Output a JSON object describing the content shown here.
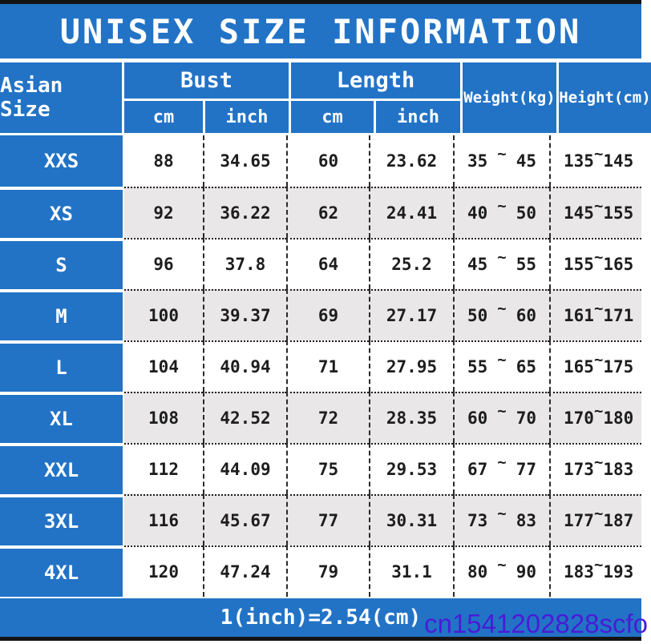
{
  "title": "UNISEX SIZE INFORMATION",
  "table": {
    "corner_header": "Asian Size",
    "bust_header": "Bust",
    "length_header": "Length",
    "weight_header": "Weight(kg)",
    "height_header": "Height(cm)",
    "cm_label": "cm",
    "inch_label": "inch",
    "tilde": "~",
    "rows": [
      {
        "size": "XXS",
        "bust_cm": "88",
        "bust_inch": "34.65",
        "length_cm": "60",
        "length_inch": "23.62",
        "weight_min": "35",
        "weight_max": "45",
        "height_min": "135",
        "height_max": "145"
      },
      {
        "size": "XS",
        "bust_cm": "92",
        "bust_inch": "36.22",
        "length_cm": "62",
        "length_inch": "24.41",
        "weight_min": "40",
        "weight_max": "50",
        "height_min": "145",
        "height_max": "155"
      },
      {
        "size": "S",
        "bust_cm": "96",
        "bust_inch": "37.8",
        "length_cm": "64",
        "length_inch": "25.2",
        "weight_min": "45",
        "weight_max": "55",
        "height_min": "155",
        "height_max": "165"
      },
      {
        "size": "M",
        "bust_cm": "100",
        "bust_inch": "39.37",
        "length_cm": "69",
        "length_inch": "27.17",
        "weight_min": "50",
        "weight_max": "60",
        "height_min": "161",
        "height_max": "171"
      },
      {
        "size": "L",
        "bust_cm": "104",
        "bust_inch": "40.94",
        "length_cm": "71",
        "length_inch": "27.95",
        "weight_min": "55",
        "weight_max": "65",
        "height_min": "165",
        "height_max": "175"
      },
      {
        "size": "XL",
        "bust_cm": "108",
        "bust_inch": "42.52",
        "length_cm": "72",
        "length_inch": "28.35",
        "weight_min": "60",
        "weight_max": "70",
        "height_min": "170",
        "height_max": "180"
      },
      {
        "size": "XXL",
        "bust_cm": "112",
        "bust_inch": "44.09",
        "length_cm": "75",
        "length_inch": "29.53",
        "weight_min": "67",
        "weight_max": "77",
        "height_min": "173",
        "height_max": "183"
      },
      {
        "size": "3XL",
        "bust_cm": "116",
        "bust_inch": "45.67",
        "length_cm": "77",
        "length_inch": "30.31",
        "weight_min": "73",
        "weight_max": "83",
        "height_min": "177",
        "height_max": "187"
      },
      {
        "size": "4XL",
        "bust_cm": "120",
        "bust_inch": "47.24",
        "length_cm": "79",
        "length_inch": "31.1",
        "weight_min": "80",
        "weight_max": "90",
        "height_min": "183",
        "height_max": "193"
      }
    ]
  },
  "footer": {
    "conversion_note": "1(inch)=2.54(cm)"
  },
  "watermark": "cn1541202828scfo",
  "colors": {
    "accent_blue": "#2273c6",
    "zebra_gray": "#e9e7e8",
    "watermark_purple": "#4a1bd6"
  }
}
